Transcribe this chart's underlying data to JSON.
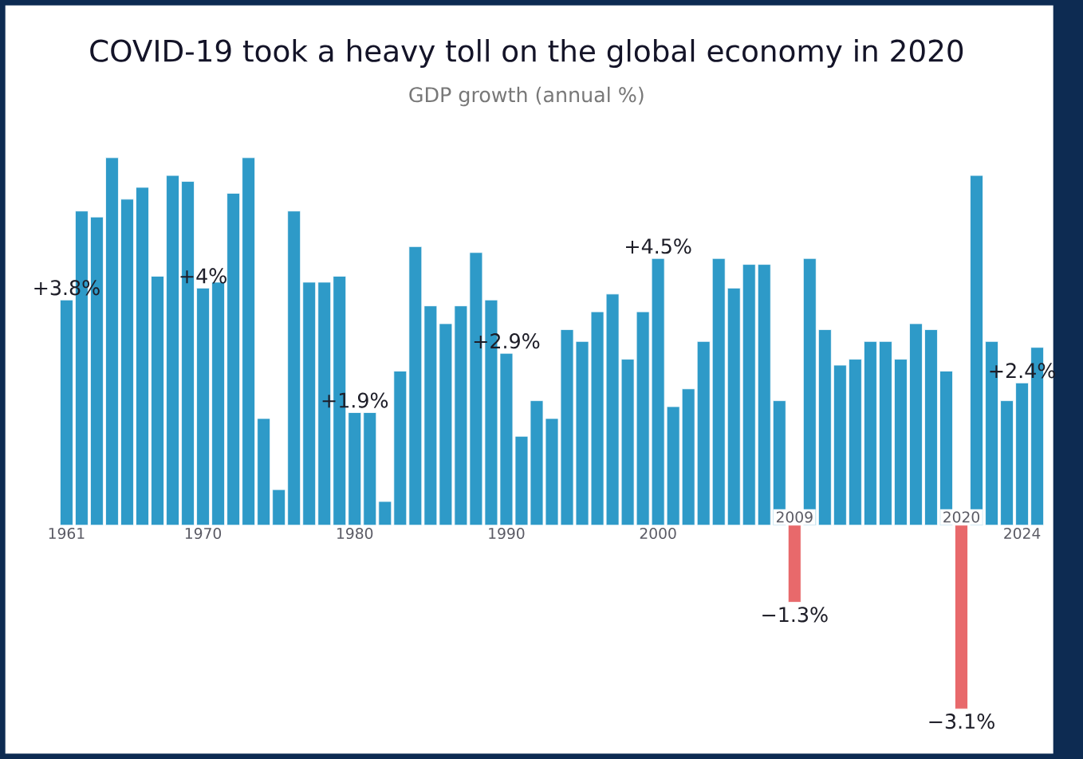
{
  "chart_data": {
    "type": "bar",
    "title": "COVID-19 took a heavy toll on the global economy in 2020",
    "subtitle": "GDP growth (annual %)",
    "categories": [
      "1961",
      null,
      null,
      null,
      null,
      null,
      null,
      null,
      null,
      "1970",
      null,
      null,
      null,
      null,
      null,
      null,
      null,
      null,
      null,
      "1980",
      null,
      null,
      null,
      null,
      null,
      null,
      null,
      null,
      null,
      "1990",
      null,
      null,
      null,
      null,
      null,
      null,
      null,
      null,
      null,
      "2000",
      null,
      null,
      null,
      null,
      null,
      null,
      null,
      null,
      "2009",
      null,
      null,
      null,
      null,
      null,
      null,
      null,
      null,
      null,
      null,
      "2020",
      null,
      null,
      null,
      "2024",
      null
    ],
    "values": [
      3.8,
      5.3,
      5.2,
      6.2,
      5.5,
      5.7,
      4.2,
      5.9,
      5.8,
      4.0,
      4.1,
      5.6,
      6.2,
      1.8,
      0.6,
      5.3,
      4.1,
      4.1,
      4.2,
      1.9,
      1.9,
      0.4,
      2.6,
      4.7,
      3.7,
      3.4,
      3.7,
      4.6,
      3.8,
      2.9,
      1.5,
      2.1,
      1.8,
      3.3,
      3.1,
      3.6,
      3.9,
      2.8,
      3.6,
      4.5,
      2.0,
      2.3,
      3.1,
      4.5,
      4.0,
      4.4,
      4.4,
      2.1,
      -1.3,
      4.5,
      3.3,
      2.7,
      2.8,
      3.1,
      3.1,
      2.8,
      3.4,
      3.3,
      2.6,
      -3.1,
      5.9,
      3.1,
      2.1,
      2.4,
      3.0
    ],
    "value_labels": [
      "+3.8%",
      null,
      null,
      null,
      null,
      null,
      null,
      null,
      null,
      "+4%",
      null,
      null,
      null,
      null,
      null,
      null,
      null,
      null,
      null,
      "+1.9%",
      null,
      null,
      null,
      null,
      null,
      null,
      null,
      null,
      null,
      "+2.9%",
      null,
      null,
      null,
      null,
      null,
      null,
      null,
      null,
      null,
      "+4.5%",
      null,
      null,
      null,
      null,
      null,
      null,
      null,
      null,
      "−1.3%",
      null,
      null,
      null,
      null,
      null,
      null,
      null,
      null,
      null,
      null,
      "−3.1%",
      null,
      null,
      null,
      "+2.4%",
      null
    ],
    "colors": [
      "#2e9ac8",
      "#2e9ac8",
      "#2e9ac8",
      "#2e9ac8",
      "#2e9ac8",
      "#2e9ac8",
      "#2e9ac8",
      "#2e9ac8",
      "#2e9ac8",
      "#2e9ac8",
      "#2e9ac8",
      "#2e9ac8",
      "#2e9ac8",
      "#2e9ac8",
      "#2e9ac8",
      "#2e9ac8",
      "#2e9ac8",
      "#2e9ac8",
      "#2e9ac8",
      "#2e9ac8",
      "#2e9ac8",
      "#2e9ac8",
      "#2e9ac8",
      "#2e9ac8",
      "#2e9ac8",
      "#2e9ac8",
      "#2e9ac8",
      "#2e9ac8",
      "#2e9ac8",
      "#2e9ac8",
      "#2e9ac8",
      "#2e9ac8",
      "#2e9ac8",
      "#2e9ac8",
      "#2e9ac8",
      "#2e9ac8",
      "#2e9ac8",
      "#2e9ac8",
      "#2e9ac8",
      "#2e9ac8",
      "#2e9ac8",
      "#2e9ac8",
      "#2e9ac8",
      "#2e9ac8",
      "#2e9ac8",
      "#2e9ac8",
      "#2e9ac8",
      "#2e9ac8",
      "#e8696b",
      "#2e9ac8",
      "#2e9ac8",
      "#2e9ac8",
      "#2e9ac8",
      "#2e9ac8",
      "#2e9ac8",
      "#2e9ac8",
      "#2e9ac8",
      "#2e9ac8",
      "#2e9ac8",
      "#e8696b",
      "#2e9ac8",
      "#2e9ac8",
      "#2e9ac8",
      "#2e9ac8",
      "#2e9ac8"
    ]
  }
}
